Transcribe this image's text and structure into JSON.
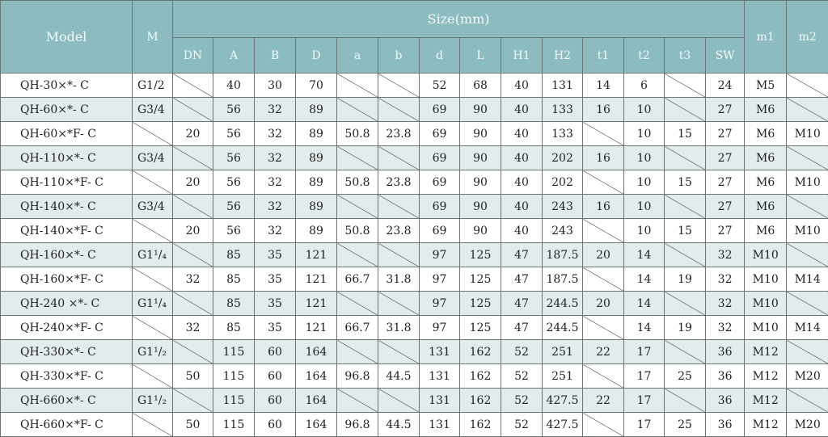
{
  "header": {
    "model": "Model",
    "m": "M",
    "size": "Size(mm)",
    "m1": "m1",
    "m2": "m2",
    "size_columns": [
      "DN",
      "A",
      "B",
      "D",
      "a",
      "b",
      "d",
      "L",
      "H1",
      "H2",
      "t1",
      "t2",
      "t3",
      "SW"
    ]
  },
  "colors": {
    "header_bg": "#8dbcc0",
    "stripe_bg": "#e3ecec"
  },
  "rows": [
    {
      "model": "QH-30×*- C",
      "m": "G1/2",
      "values": [
        null,
        "40",
        "30",
        "70",
        null,
        null,
        "52",
        "68",
        "40",
        "131",
        "14",
        "6",
        null,
        "24"
      ],
      "m1": "M5",
      "m2": null
    },
    {
      "model": "QH-60×*- C",
      "m": "G3/4",
      "values": [
        null,
        "56",
        "32",
        "89",
        null,
        null,
        "69",
        "90",
        "40",
        "133",
        "16",
        "10",
        null,
        "27"
      ],
      "m1": "M6",
      "m2": null
    },
    {
      "model": "QH-60×*F- C",
      "m": null,
      "values": [
        "20",
        "56",
        "32",
        "89",
        "50.8",
        "23.8",
        "69",
        "90",
        "40",
        "133",
        null,
        "10",
        "15",
        "27"
      ],
      "m1": "M6",
      "m2": "M10"
    },
    {
      "model": "QH-110×*- C",
      "m": "G3/4",
      "values": [
        null,
        "56",
        "32",
        "89",
        null,
        null,
        "69",
        "90",
        "40",
        "202",
        "16",
        "10",
        null,
        "27"
      ],
      "m1": "M6",
      "m2": null
    },
    {
      "model": "QH-110×*F- C",
      "m": null,
      "values": [
        "20",
        "56",
        "32",
        "89",
        "50.8",
        "23.8",
        "69",
        "90",
        "40",
        "202",
        null,
        "10",
        "15",
        "27"
      ],
      "m1": "M6",
      "m2": "M10"
    },
    {
      "model": "QH-140×*- C",
      "m": "G3/4",
      "values": [
        null,
        "56",
        "32",
        "89",
        null,
        null,
        "69",
        "90",
        "40",
        "243",
        "16",
        "10",
        null,
        "27"
      ],
      "m1": "M6",
      "m2": null
    },
    {
      "model": "QH-140×*F- C",
      "m": null,
      "values": [
        "20",
        "56",
        "32",
        "89",
        "50.8",
        "23.8",
        "69",
        "90",
        "40",
        "243",
        null,
        "10",
        "15",
        "27"
      ],
      "m1": "M6",
      "m2": "M10"
    },
    {
      "model": "QH-160×*- C",
      "m": "G1¹/₄",
      "values": [
        null,
        "85",
        "35",
        "121",
        null,
        null,
        "97",
        "125",
        "47",
        "187.5",
        "20",
        "14",
        null,
        "32"
      ],
      "m1": "M10",
      "m2": null
    },
    {
      "model": "QH-160×*F- C",
      "m": null,
      "values": [
        "32",
        "85",
        "35",
        "121",
        "66.7",
        "31.8",
        "97",
        "125",
        "47",
        "187.5",
        null,
        "14",
        "19",
        "32"
      ],
      "m1": "M10",
      "m2": "M14"
    },
    {
      "model": "QH-240 ×*- C",
      "m": "G1¹/₄",
      "values": [
        null,
        "85",
        "35",
        "121",
        null,
        null,
        "97",
        "125",
        "47",
        "244.5",
        "20",
        "14",
        null,
        "32"
      ],
      "m1": "M10",
      "m2": null
    },
    {
      "model": "QH-240×*F- C",
      "m": null,
      "values": [
        "32",
        "85",
        "35",
        "121",
        "66.7",
        "31.8",
        "97",
        "125",
        "47",
        "244.5",
        null,
        "14",
        "19",
        "32"
      ],
      "m1": "M10",
      "m2": "M14"
    },
    {
      "model": "QH-330×*- C",
      "m": "G1¹/₂",
      "values": [
        null,
        "115",
        "60",
        "164",
        null,
        null,
        "131",
        "162",
        "52",
        "251",
        "22",
        "17",
        null,
        "36"
      ],
      "m1": "M12",
      "m2": null
    },
    {
      "model": "QH-330×*F- C",
      "m": null,
      "values": [
        "50",
        "115",
        "60",
        "164",
        "96.8",
        "44.5",
        "131",
        "162",
        "52",
        "251",
        null,
        "17",
        "25",
        "36"
      ],
      "m1": "M12",
      "m2": "M20"
    },
    {
      "model": "QH-660×*- C",
      "m": "G1¹/₂",
      "values": [
        null,
        "115",
        "60",
        "164",
        null,
        null,
        "131",
        "162",
        "52",
        "427.5",
        "22",
        "17",
        null,
        "36"
      ],
      "m1": "M12",
      "m2": null
    },
    {
      "model": "QH-660×*F- C",
      "m": null,
      "values": [
        "50",
        "115",
        "60",
        "164",
        "96.8",
        "44.5",
        "131",
        "162",
        "52",
        "427.5",
        null,
        "17",
        "25",
        "36"
      ],
      "m1": "M12",
      "m2": "M20"
    }
  ]
}
